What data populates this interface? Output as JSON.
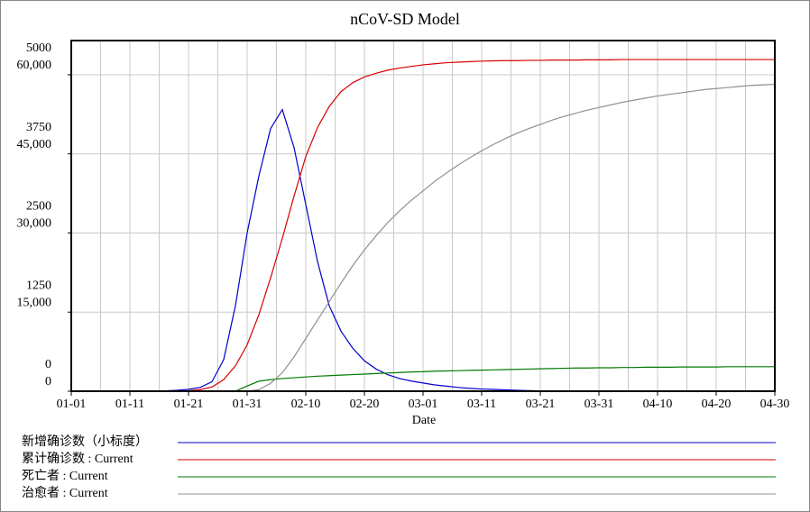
{
  "chart_data": {
    "type": "line",
    "title": "nCoV-SD Model",
    "xlabel": "Date",
    "x": [
      0,
      2,
      4,
      6,
      8,
      10,
      12,
      14,
      16,
      18,
      20,
      22,
      24,
      26,
      28,
      30,
      32,
      34,
      36,
      38,
      40,
      42,
      44,
      46,
      48,
      50,
      52,
      54,
      56,
      58,
      60,
      62,
      64,
      66,
      68,
      70,
      72,
      74,
      76,
      78,
      80,
      82,
      84,
      86,
      88,
      90,
      92,
      94,
      96,
      98,
      100,
      102,
      104,
      106,
      108,
      110,
      112,
      114,
      116,
      118,
      120
    ],
    "xlim": [
      0,
      120
    ],
    "xticks": [
      {
        "value": 0,
        "label": "01-01"
      },
      {
        "value": 10,
        "label": "01-11"
      },
      {
        "value": 20,
        "label": "01-21"
      },
      {
        "value": 30,
        "label": "01-31"
      },
      {
        "value": 40,
        "label": "02-10"
      },
      {
        "value": 50,
        "label": "02-20"
      },
      {
        "value": 60,
        "label": "03-01"
      },
      {
        "value": 70,
        "label": "03-11"
      },
      {
        "value": 80,
        "label": "03-21"
      },
      {
        "value": 90,
        "label": "03-31"
      },
      {
        "value": 100,
        "label": "04-10"
      },
      {
        "value": 110,
        "label": "04-20"
      },
      {
        "value": 120,
        "label": "04-30"
      }
    ],
    "ylim": [
      0,
      5540
    ],
    "yticks": [
      0,
      1250,
      2500,
      3750,
      5000
    ],
    "y2lim": [
      0,
      66500
    ],
    "y2ticks": [
      0,
      {
        "value": 15000,
        "label": "15,000"
      },
      {
        "value": 30000,
        "label": "30,000"
      },
      {
        "value": 45000,
        "label": "45,000"
      },
      {
        "value": 60000,
        "label": "60,000"
      }
    ],
    "grid": true,
    "series": [
      {
        "name": "新增确诊数（小标度）",
        "color": "#0000c8",
        "values": [
          0,
          0,
          0,
          0,
          0,
          0,
          0,
          0,
          5,
          15,
          30,
          60,
          150,
          500,
          1350,
          2500,
          3400,
          4150,
          4450,
          3850,
          2950,
          2050,
          1350,
          950,
          680,
          480,
          350,
          260,
          200,
          160,
          130,
          100,
          80,
          60,
          45,
          35,
          28,
          22,
          15,
          10,
          6,
          4,
          3,
          2,
          2,
          1,
          1,
          1,
          0,
          0,
          0,
          0,
          0,
          0,
          0,
          0,
          0,
          0,
          0,
          0,
          0
        ]
      },
      {
        "name": "累计确诊数 : Current",
        "color": "#d80000",
        "axis": "y2",
        "values": [
          0,
          0,
          0,
          0,
          0,
          0,
          0,
          0,
          0,
          0,
          100,
          300,
          800,
          2200,
          4800,
          8800,
          14500,
          21500,
          29000,
          37000,
          44500,
          50000,
          54000,
          56800,
          58500,
          59600,
          60300,
          60900,
          61300,
          61600,
          61900,
          62100,
          62300,
          62400,
          62500,
          62600,
          62650,
          62700,
          62700,
          62750,
          62750,
          62800,
          62800,
          62800,
          62850,
          62850,
          62850,
          62900,
          62900,
          62900,
          62900,
          62900,
          62900,
          62900,
          62900,
          62900,
          62900,
          62900,
          62900,
          62900,
          62900
        ]
      },
      {
        "name": "死亡者 : Current",
        "color": "#007a00",
        "axis": "y2",
        "values": [
          0,
          0,
          0,
          0,
          0,
          0,
          0,
          0,
          0,
          0,
          0,
          0,
          0,
          0,
          0,
          1000,
          1900,
          2200,
          2400,
          2550,
          2700,
          2850,
          2950,
          3050,
          3150,
          3250,
          3350,
          3450,
          3550,
          3650,
          3700,
          3800,
          3850,
          3900,
          3950,
          4000,
          4050,
          4100,
          4150,
          4200,
          4250,
          4300,
          4350,
          4400,
          4400,
          4450,
          4450,
          4500,
          4500,
          4550,
          4550,
          4550,
          4600,
          4600,
          4600,
          4600,
          4650,
          4650,
          4650,
          4650,
          4650
        ]
      },
      {
        "name": "治愈者 : Current",
        "color": "#909090",
        "axis": "y2",
        "values": [
          0,
          0,
          0,
          0,
          0,
          0,
          0,
          0,
          0,
          0,
          0,
          0,
          0,
          0,
          0,
          0,
          300,
          1500,
          3500,
          6500,
          10000,
          13500,
          17000,
          20500,
          23800,
          26800,
          29500,
          32000,
          34200,
          36200,
          38000,
          39800,
          41400,
          42900,
          44300,
          45600,
          46800,
          47900,
          48900,
          49800,
          50600,
          51400,
          52100,
          52700,
          53300,
          53800,
          54300,
          54800,
          55200,
          55600,
          56000,
          56300,
          56600,
          56900,
          57200,
          57400,
          57600,
          57800,
          58000,
          58100,
          58200
        ]
      }
    ]
  }
}
